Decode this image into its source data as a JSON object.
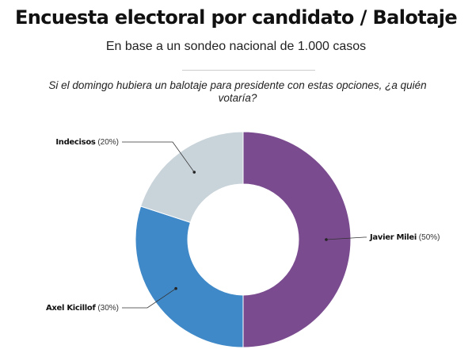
{
  "title": "Encuesta electoral por candidato / Balotaje",
  "subtitle": "En base a un sondeo nacional de 1.000 casos",
  "question": "Si el domingo hubiera un balotaje para presidente con estas opciones, ¿a quién votaría?",
  "chart_data": {
    "type": "pie",
    "donut": true,
    "slices": [
      {
        "name": "Javier Milei",
        "value": 50,
        "label": "(50%)",
        "color": "#7a4c8f"
      },
      {
        "name": "Axel Kicillof",
        "value": 30,
        "label": "(30%)",
        "color": "#4089c8"
      },
      {
        "name": "Indecisos",
        "value": 20,
        "label": "(20%)",
        "color": "#c8d3da"
      }
    ]
  }
}
